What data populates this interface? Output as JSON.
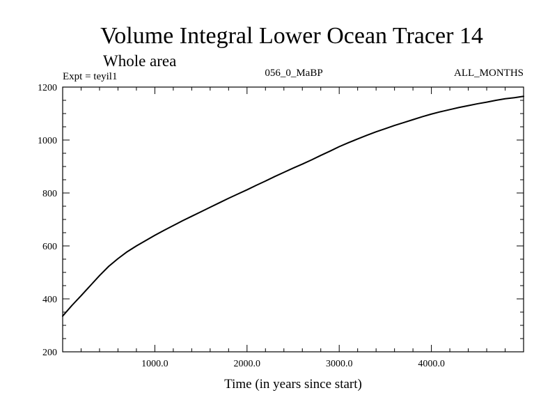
{
  "chart_data": {
    "type": "line",
    "title": "Volume Integral Lower Ocean Tracer 14",
    "subtitle": "Whole area",
    "experiment": "Expt = teyil1",
    "period": "056_0_MaBP",
    "months": "ALL_MONTHS",
    "xlabel": "Time (in years since start)",
    "ylabel": "",
    "xlim": [
      0,
      5000
    ],
    "ylim": [
      200,
      1200
    ],
    "xticks": [
      1000,
      2000,
      3000,
      4000
    ],
    "xtick_labels": [
      "1000.0",
      "2000.0",
      "3000.0",
      "4000.0"
    ],
    "yticks": [
      200,
      400,
      600,
      800,
      1000,
      1200
    ],
    "ytick_labels": [
      "200",
      "400",
      "600",
      "800",
      "1000",
      "1200"
    ],
    "grid": false,
    "series": [
      {
        "name": "Lower Ocean Tracer 14",
        "x": [
          0,
          100,
          200,
          300,
          400,
          500,
          600,
          700,
          800,
          900,
          1000,
          1100,
          1200,
          1300,
          1400,
          1500,
          1600,
          1700,
          1800,
          1900,
          2000,
          2100,
          2200,
          2300,
          2400,
          2500,
          2600,
          2700,
          2800,
          2900,
          3000,
          3100,
          3200,
          3300,
          3400,
          3500,
          3600,
          3700,
          3800,
          3900,
          4000,
          4100,
          4200,
          4300,
          4400,
          4500,
          4600,
          4700,
          4800,
          4900,
          5000
        ],
        "values": [
          335,
          375,
          412,
          450,
          488,
          523,
          552,
          578,
          600,
          620,
          640,
          659,
          677,
          695,
          712,
          729,
          746,
          763,
          780,
          796,
          812,
          829,
          845,
          862,
          878,
          894,
          909,
          925,
          942,
          958,
          975,
          990,
          1004,
          1018,
          1031,
          1043,
          1055,
          1066,
          1077,
          1088,
          1098,
          1107,
          1115,
          1123,
          1130,
          1137,
          1143,
          1150,
          1156,
          1160,
          1165
        ]
      }
    ]
  }
}
